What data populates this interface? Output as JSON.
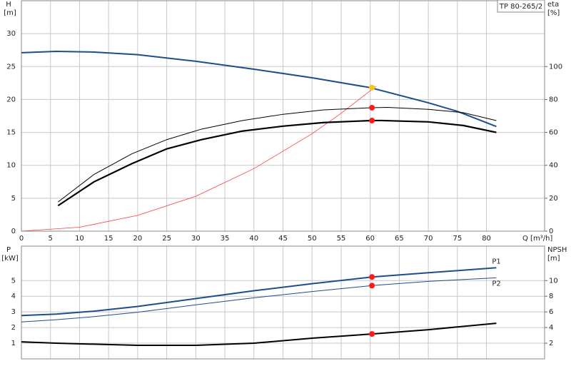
{
  "chart_data": [
    {
      "type": "line",
      "title": "TP 80-265/2",
      "y_label": "H",
      "y_unit": "[m]",
      "y2_label": "eta",
      "y2_unit": "[%]",
      "x_label": "Q [m³/h]",
      "xlim": [
        0,
        90
      ],
      "xticks": [
        0,
        5,
        10,
        15,
        20,
        25,
        30,
        35,
        40,
        45,
        50,
        55,
        60,
        65,
        70,
        75,
        80
      ],
      "show_xtick_labels": true,
      "ylim": [
        0,
        35
      ],
      "yticks": [
        0,
        5,
        10,
        15,
        20,
        25,
        30
      ],
      "y2lim": [
        0,
        140
      ],
      "y2ticks": [
        0,
        20,
        40,
        60,
        80,
        100
      ],
      "grid": true,
      "series": [
        {
          "color": "#ff3b3b",
          "line_width": 0.8,
          "x": [
            0,
            10,
            20,
            30,
            40,
            50,
            55,
            61
          ],
          "values": [
            0,
            0.6,
            2.4,
            5.3,
            9.5,
            14.8,
            17.9,
            22
          ]
        },
        {
          "color": "#1d4e89",
          "line_width": 2,
          "x": [
            0,
            6,
            12.5,
            20,
            30,
            40,
            50,
            60,
            70,
            75,
            81.7
          ],
          "values": [
            27.1,
            27.3,
            27.2,
            26.8,
            25.8,
            24.6,
            23.3,
            21.8,
            19.5,
            18.2,
            15.9
          ]
        },
        {
          "color": "#000000",
          "line_width": 1,
          "axis": "y2",
          "x": [
            6.3,
            12.5,
            19,
            25,
            31,
            38,
            45,
            52,
            60.3,
            63,
            70,
            76,
            81.7
          ],
          "values": [
            17.7,
            34.5,
            47,
            55.6,
            62,
            67.2,
            71,
            73.7,
            75,
            75.2,
            74,
            72,
            67.2
          ]
        },
        {
          "color": "#000000",
          "line_width": 2.2,
          "axis": "y2",
          "x": [
            6.3,
            12.5,
            19,
            25,
            31,
            38,
            45,
            52,
            60.3,
            62,
            70,
            76,
            81.7
          ],
          "values": [
            15.5,
            30,
            41,
            50,
            55.6,
            60.8,
            63.8,
            66,
            67.2,
            67.2,
            66.4,
            64.2,
            60
          ]
        },
        {
          "color": "#ff1a1a",
          "marker": true,
          "axis": "y2",
          "x": [
            60.3,
            60.3
          ],
          "values": [
            75,
            67.2
          ]
        },
        {
          "color": "#f5c518",
          "marker": true,
          "x": [
            60.3
          ],
          "values": [
            21.8
          ]
        }
      ]
    },
    {
      "type": "line",
      "y_label": "P",
      "y_unit": "[kW]",
      "y2_label": "NPSH",
      "y2_unit": "[m]",
      "xlim": [
        0,
        90
      ],
      "xticks": [
        0,
        5,
        10,
        15,
        20,
        25,
        30,
        35,
        40,
        45,
        50,
        55,
        60,
        65,
        70,
        75,
        80
      ],
      "show_xtick_labels": false,
      "ylim": [
        0,
        7.2
      ],
      "yticks": [
        1,
        2,
        3,
        4,
        5
      ],
      "y2lim": [
        0,
        14.4
      ],
      "y2ticks": [
        2,
        4,
        6,
        8,
        10
      ],
      "grid": true,
      "series": [
        {
          "label": "P1",
          "color": "#1d4e89",
          "line_width": 2,
          "x": [
            0,
            6,
            12.5,
            20,
            30,
            40,
            50,
            60.3,
            70,
            81.7
          ],
          "values": [
            2.77,
            2.86,
            3.05,
            3.35,
            3.85,
            4.35,
            4.8,
            5.23,
            5.5,
            5.82
          ]
        },
        {
          "label": "P2",
          "color": "#1d4e89",
          "line_width": 1,
          "x": [
            0,
            6,
            12.5,
            20,
            30,
            40,
            50,
            60.3,
            70,
            81.7
          ],
          "values": [
            2.36,
            2.5,
            2.7,
            2.98,
            3.45,
            3.9,
            4.3,
            4.68,
            4.95,
            5.18
          ]
        },
        {
          "color": "#000000",
          "line_width": 2,
          "axis": "y2",
          "x": [
            0,
            6,
            20,
            30,
            40,
            50,
            60.3,
            70,
            81.7
          ],
          "values": [
            2.18,
            2.0,
            1.73,
            1.73,
            2.0,
            2.64,
            3.18,
            3.73,
            4.55
          ]
        },
        {
          "color": "#ff1a1a",
          "marker": true,
          "x": [
            60.3,
            60.3
          ],
          "values": [
            5.23,
            4.68
          ]
        },
        {
          "color": "#ff1a1a",
          "marker": true,
          "axis": "y2",
          "x": [
            60.3
          ],
          "values": [
            3.18
          ]
        }
      ]
    }
  ]
}
